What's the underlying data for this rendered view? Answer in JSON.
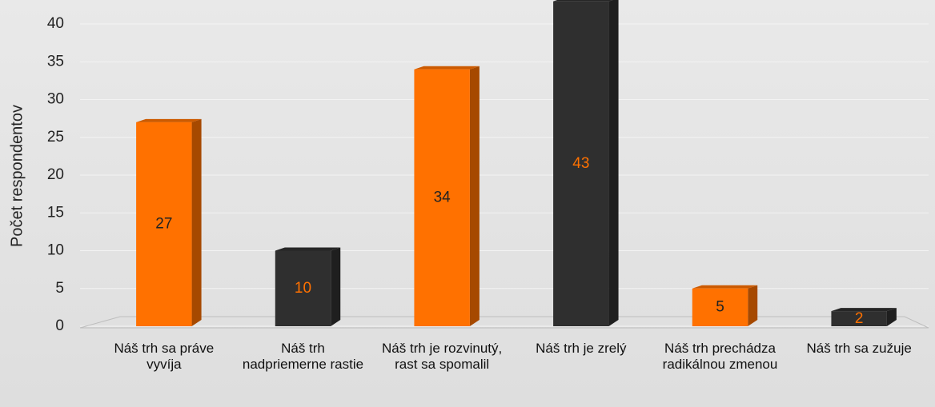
{
  "chart_data": {
    "type": "bar3d",
    "y_label": "Počet respondentov",
    "categories": [
      "Náš trh sa práve vyvíja",
      "Náš trh nadpriemerne rastie",
      "Náš trh je rozvinutý, rast sa spomalil",
      "Náš trh je zrelý",
      "Náš trh prechádza radikálnou zmenou",
      "Náš trh sa zužuje"
    ],
    "values": [
      27,
      10,
      34,
      43,
      5,
      2
    ],
    "colors": [
      "#ff7100",
      "#2f2f2f",
      "#ff7100",
      "#2f2f2f",
      "#ff7100",
      "#2f2f2f"
    ],
    "ylim": [
      0,
      40
    ],
    "yticks": [
      0,
      5,
      10,
      15,
      20,
      25,
      30,
      35,
      40
    ],
    "grid": true
  }
}
